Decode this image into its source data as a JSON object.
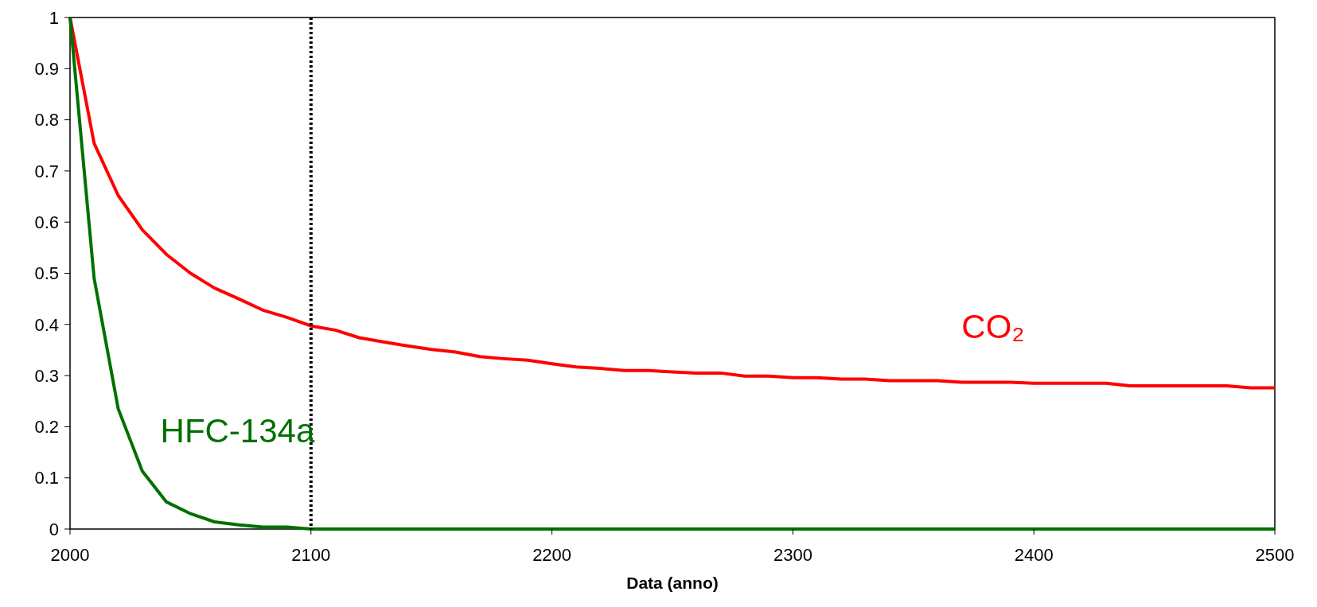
{
  "chart_data": {
    "type": "line",
    "xlabel": "Data (anno)",
    "xlim": [
      2000,
      2500
    ],
    "xticks": [
      2000,
      2100,
      2200,
      2300,
      2400,
      2500
    ],
    "ylim": [
      0,
      1
    ],
    "yticks": [
      0,
      0.1,
      0.2,
      0.3,
      0.4,
      0.5,
      0.6,
      0.7,
      0.8,
      0.9,
      1
    ],
    "grid": false,
    "marker": "none",
    "line_style": "solid",
    "series": [
      {
        "name": "CO₂",
        "color": "#ff0000",
        "x": [
          2000,
          2010,
          2020,
          2030,
          2040,
          2050,
          2060,
          2070,
          2080,
          2090,
          2100,
          2110,
          2120,
          2130,
          2140,
          2150,
          2160,
          2170,
          2180,
          2190,
          2200,
          2210,
          2220,
          2230,
          2240,
          2250,
          2260,
          2270,
          2280,
          2290,
          2300,
          2310,
          2320,
          2330,
          2340,
          2350,
          2360,
          2370,
          2380,
          2390,
          2400,
          2410,
          2420,
          2430,
          2440,
          2450,
          2460,
          2470,
          2480,
          2490,
          2500
        ],
        "values": [
          1,
          0.754,
          0.652,
          0.585,
          0.537,
          0.5,
          0.471,
          0.45,
          0.428,
          0.414,
          0.397,
          0.389,
          0.374,
          0.366,
          0.358,
          0.351,
          0.346,
          0.337,
          0.333,
          0.33,
          0.323,
          0.317,
          0.314,
          0.31,
          0.31,
          0.307,
          0.305,
          0.305,
          0.299,
          0.299,
          0.296,
          0.296,
          0.293,
          0.293,
          0.29,
          0.29,
          0.29,
          0.287,
          0.287,
          0.287,
          0.285,
          0.285,
          0.285,
          0.285,
          0.28,
          0.28,
          0.28,
          0.28,
          0.28,
          0.276,
          0.276
        ]
      },
      {
        "name": "HFC-134a",
        "color": "#007000",
        "x": [
          2000,
          2010,
          2020,
          2030,
          2040,
          2050,
          2060,
          2070,
          2080,
          2090,
          2100,
          2500
        ],
        "values": [
          1,
          0.49,
          0.235,
          0.113,
          0.053,
          0.03,
          0.014,
          0.008,
          0.004,
          0.004,
          0,
          0
        ]
      }
    ],
    "ref_lines": [
      {
        "axis": "x",
        "value": 2100,
        "color": "#000000",
        "line_style": "dotted"
      }
    ]
  }
}
